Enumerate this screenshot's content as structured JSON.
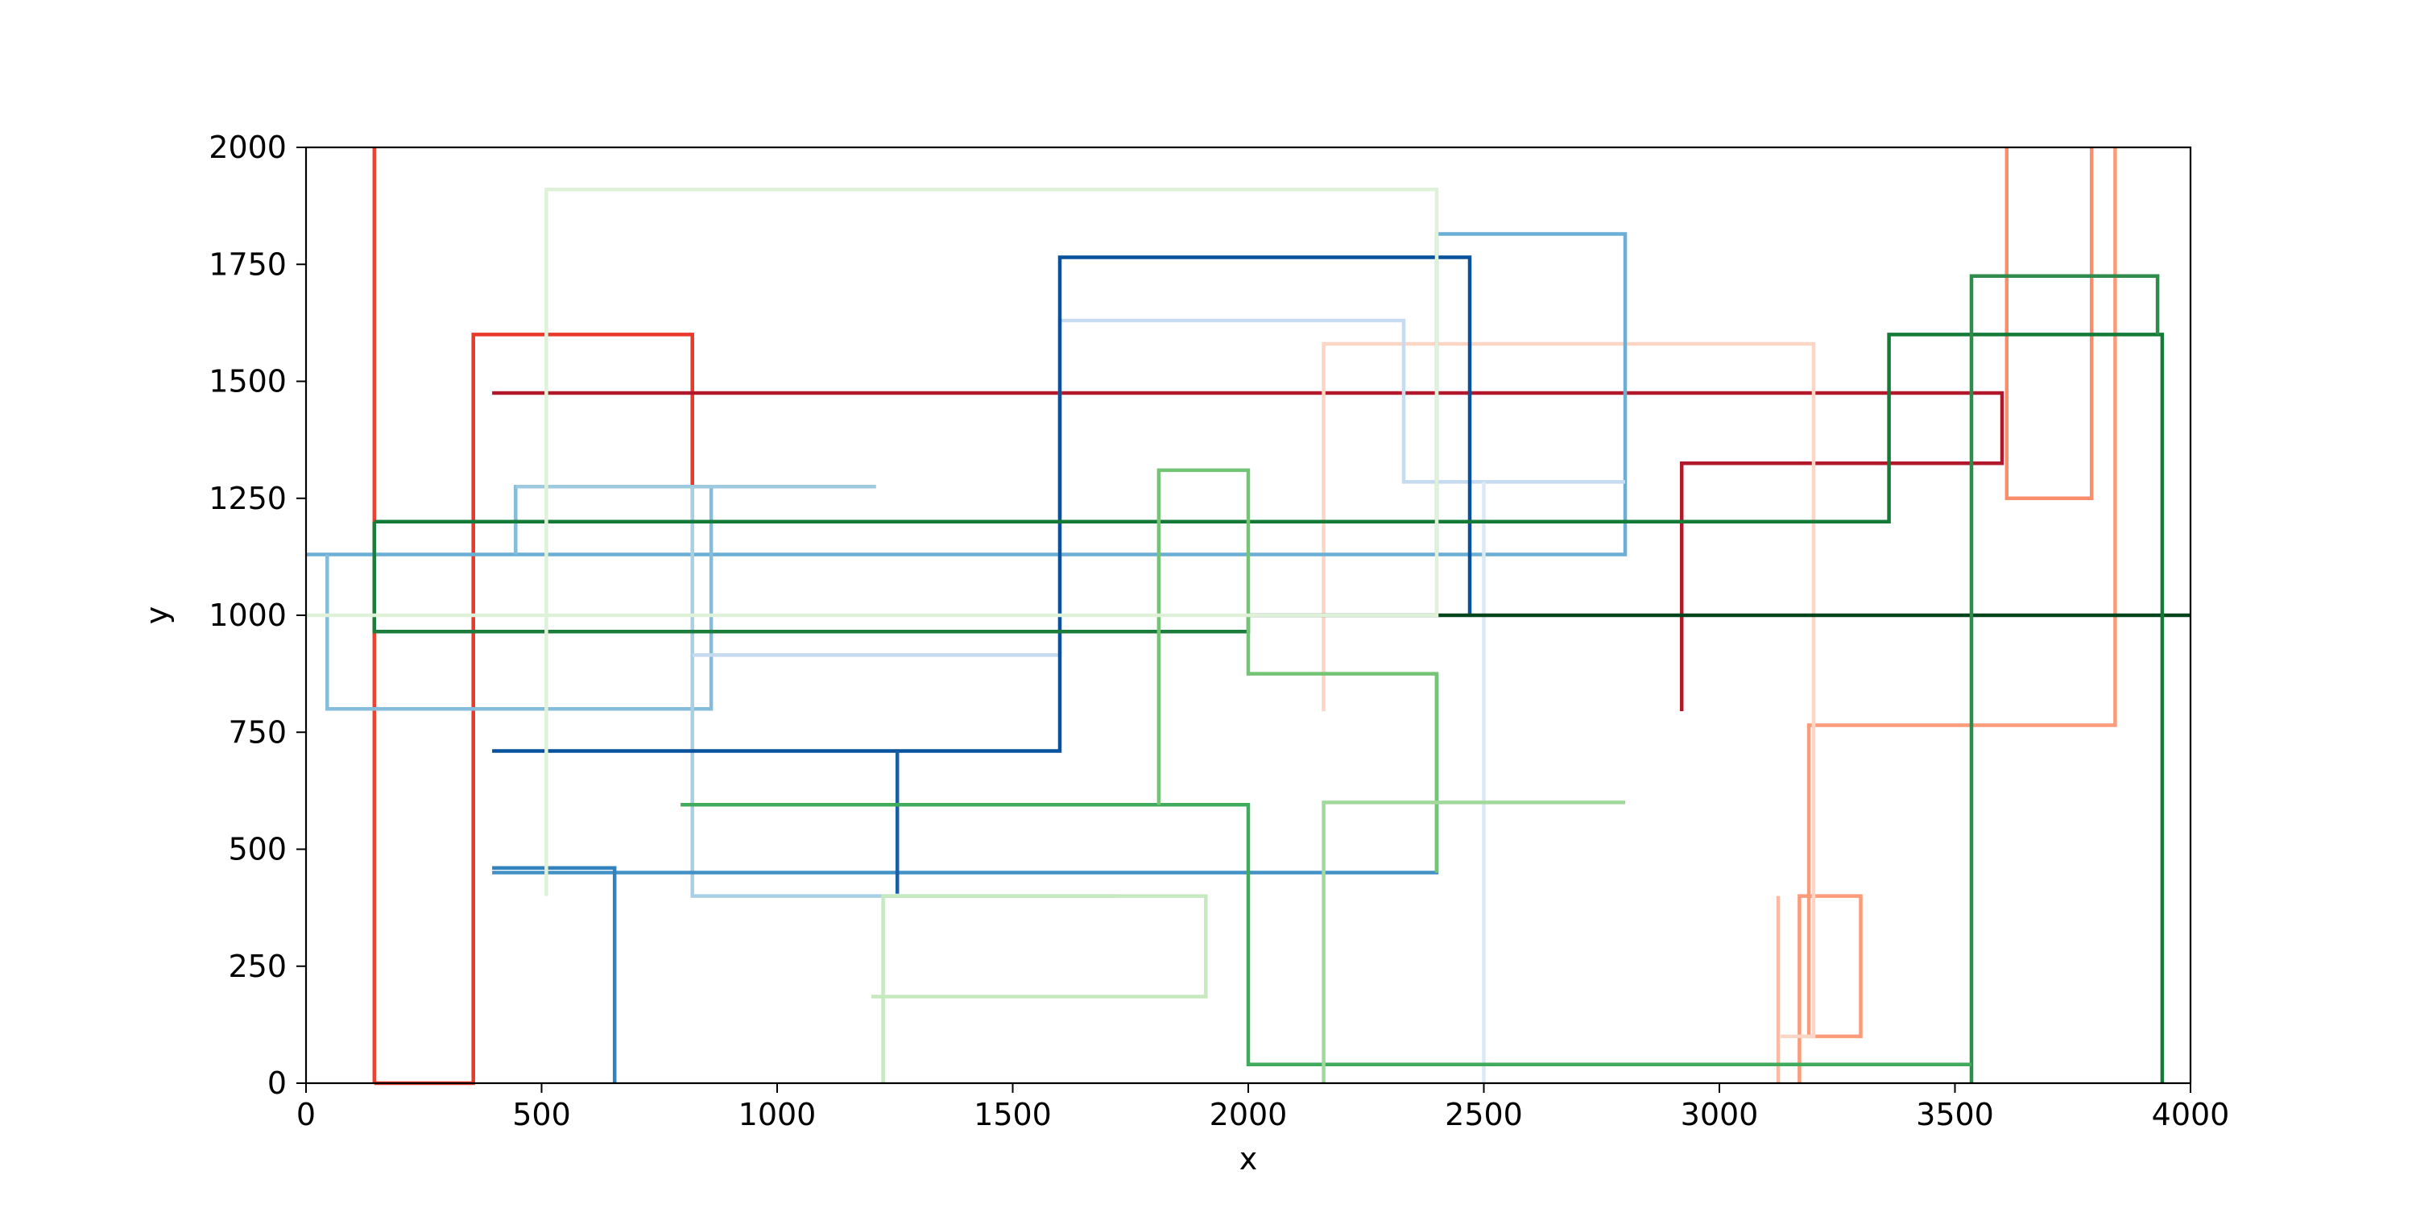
{
  "chart_data": {
    "type": "line",
    "title": "",
    "xlabel": "x",
    "ylabel": "y",
    "xlim": [
      0,
      4000
    ],
    "ylim": [
      0,
      2000
    ],
    "xticks": [
      0,
      500,
      1000,
      1500,
      2000,
      2500,
      3000,
      3500,
      4000
    ],
    "yticks": [
      0,
      250,
      500,
      750,
      1000,
      1250,
      1500,
      1750,
      2000
    ],
    "grid": false,
    "legend": "none",
    "series": [
      {
        "color": "#f0412f",
        "x": [
          145,
          145,
          145
        ],
        "y": [
          2000,
          0,
          0
        ]
      },
      {
        "color": "#e8392a",
        "x": [
          355,
          355,
          145,
          355,
          355,
          820,
          820
        ],
        "y": [
          0,
          0,
          0,
          0,
          1600,
          1600,
          1210
        ]
      },
      {
        "color": "#b2182b",
        "x": [
          395,
          1600,
          1600,
          1600,
          3600,
          3600,
          2920,
          2920
        ],
        "y": [
          1475,
          1475,
          1210,
          1475,
          1475,
          1325,
          1325,
          795
        ]
      },
      {
        "color": "#fc8d6a",
        "x": [
          3610,
          3610,
          3790,
          3790
        ],
        "y": [
          2000,
          1250,
          1250,
          2000
        ]
      },
      {
        "color": "#fb9b7a",
        "x": [
          3840,
          3840,
          3190,
          3190,
          3300,
          3300,
          3170,
          3170
        ],
        "y": [
          2000,
          765,
          765,
          100,
          100,
          400,
          400,
          0
        ]
      },
      {
        "color": "#fcbba1",
        "x": [
          3125,
          3125
        ],
        "y": [
          400,
          0
        ]
      },
      {
        "color": "#fdd5c4",
        "x": [
          2160,
          2160,
          3200,
          3200,
          3130
        ],
        "y": [
          795,
          1580,
          1580,
          100,
          100
        ]
      },
      {
        "color": "#6baed6",
        "x": [
          0,
          2800,
          2800,
          2400,
          2400,
          1600
        ],
        "y": [
          1130,
          1130,
          1815,
          1815,
          1130,
          1130
        ]
      },
      {
        "color": "#85bcdc",
        "x": [
          45,
          45,
          860,
          860,
          445,
          445
        ],
        "y": [
          1130,
          800,
          800,
          1275,
          1275,
          1130
        ]
      },
      {
        "color": "#9ecae1",
        "x": [
          445,
          1210
        ],
        "y": [
          1275,
          1275
        ]
      },
      {
        "color": "#a9cfe5",
        "x": [
          820,
          820,
          1720
        ],
        "y": [
          1275,
          400,
          400
        ]
      },
      {
        "color": "#c6dbef",
        "x": [
          820,
          1600,
          1600,
          2330,
          2330,
          2800
        ],
        "y": [
          915,
          915,
          1630,
          1630,
          1285,
          1285
        ]
      },
      {
        "color": "#dce8f4",
        "x": [
          2500,
          2500
        ],
        "y": [
          1285,
          0
        ]
      },
      {
        "color": "#4292c6",
        "x": [
          395,
          2400,
          2400
        ],
        "y": [
          450,
          450,
          875
        ]
      },
      {
        "color": "#3282be",
        "x": [
          395,
          655,
          655
        ],
        "y": [
          460,
          460,
          0
        ]
      },
      {
        "color": "#08519c",
        "x": [
          395,
          1600,
          1600,
          2470,
          2470
        ],
        "y": [
          710,
          710,
          1765,
          1765,
          1000
        ]
      },
      {
        "color": "#1a5fa6",
        "x": [
          1255,
          1255
        ],
        "y": [
          710,
          405
        ]
      },
      {
        "color": "#00441b",
        "x": [
          2000,
          4000
        ],
        "y": [
          1000,
          1000
        ]
      },
      {
        "color": "#1a7d3c",
        "x": [
          145,
          145,
          2000,
          2000
        ],
        "y": [
          1200,
          965,
          965,
          1000
        ]
      },
      {
        "color": "#137a37",
        "x": [
          145,
          3360,
          3360,
          3940,
          3940
        ],
        "y": [
          1200,
          1200,
          1600,
          1600,
          0
        ]
      },
      {
        "color": "#2e8b4b",
        "x": [
          3535,
          3535,
          3930,
          3930
        ],
        "y": [
          0,
          1725,
          1725,
          1600
        ]
      },
      {
        "color": "#41ab5d",
        "x": [
          795,
          2000,
          2000,
          3535
        ],
        "y": [
          595,
          595,
          40,
          40
        ]
      },
      {
        "color": "#74c476",
        "x": [
          1810,
          1810,
          2000,
          2000,
          2400,
          2400
        ],
        "y": [
          595,
          1310,
          1310,
          875,
          875,
          450
        ]
      },
      {
        "color": "#a1d99b",
        "x": [
          2160,
          2160,
          2800
        ],
        "y": [
          0,
          600,
          600
        ]
      },
      {
        "color": "#c7e9c0",
        "x": [
          1225,
          1225,
          1910,
          1910,
          1200
        ],
        "y": [
          0,
          400,
          400,
          185,
          185
        ]
      },
      {
        "color": "#dff2d9",
        "x": [
          0,
          2400,
          2400,
          510,
          510
        ],
        "y": [
          1000,
          1000,
          1910,
          1910,
          400
        ]
      }
    ]
  }
}
